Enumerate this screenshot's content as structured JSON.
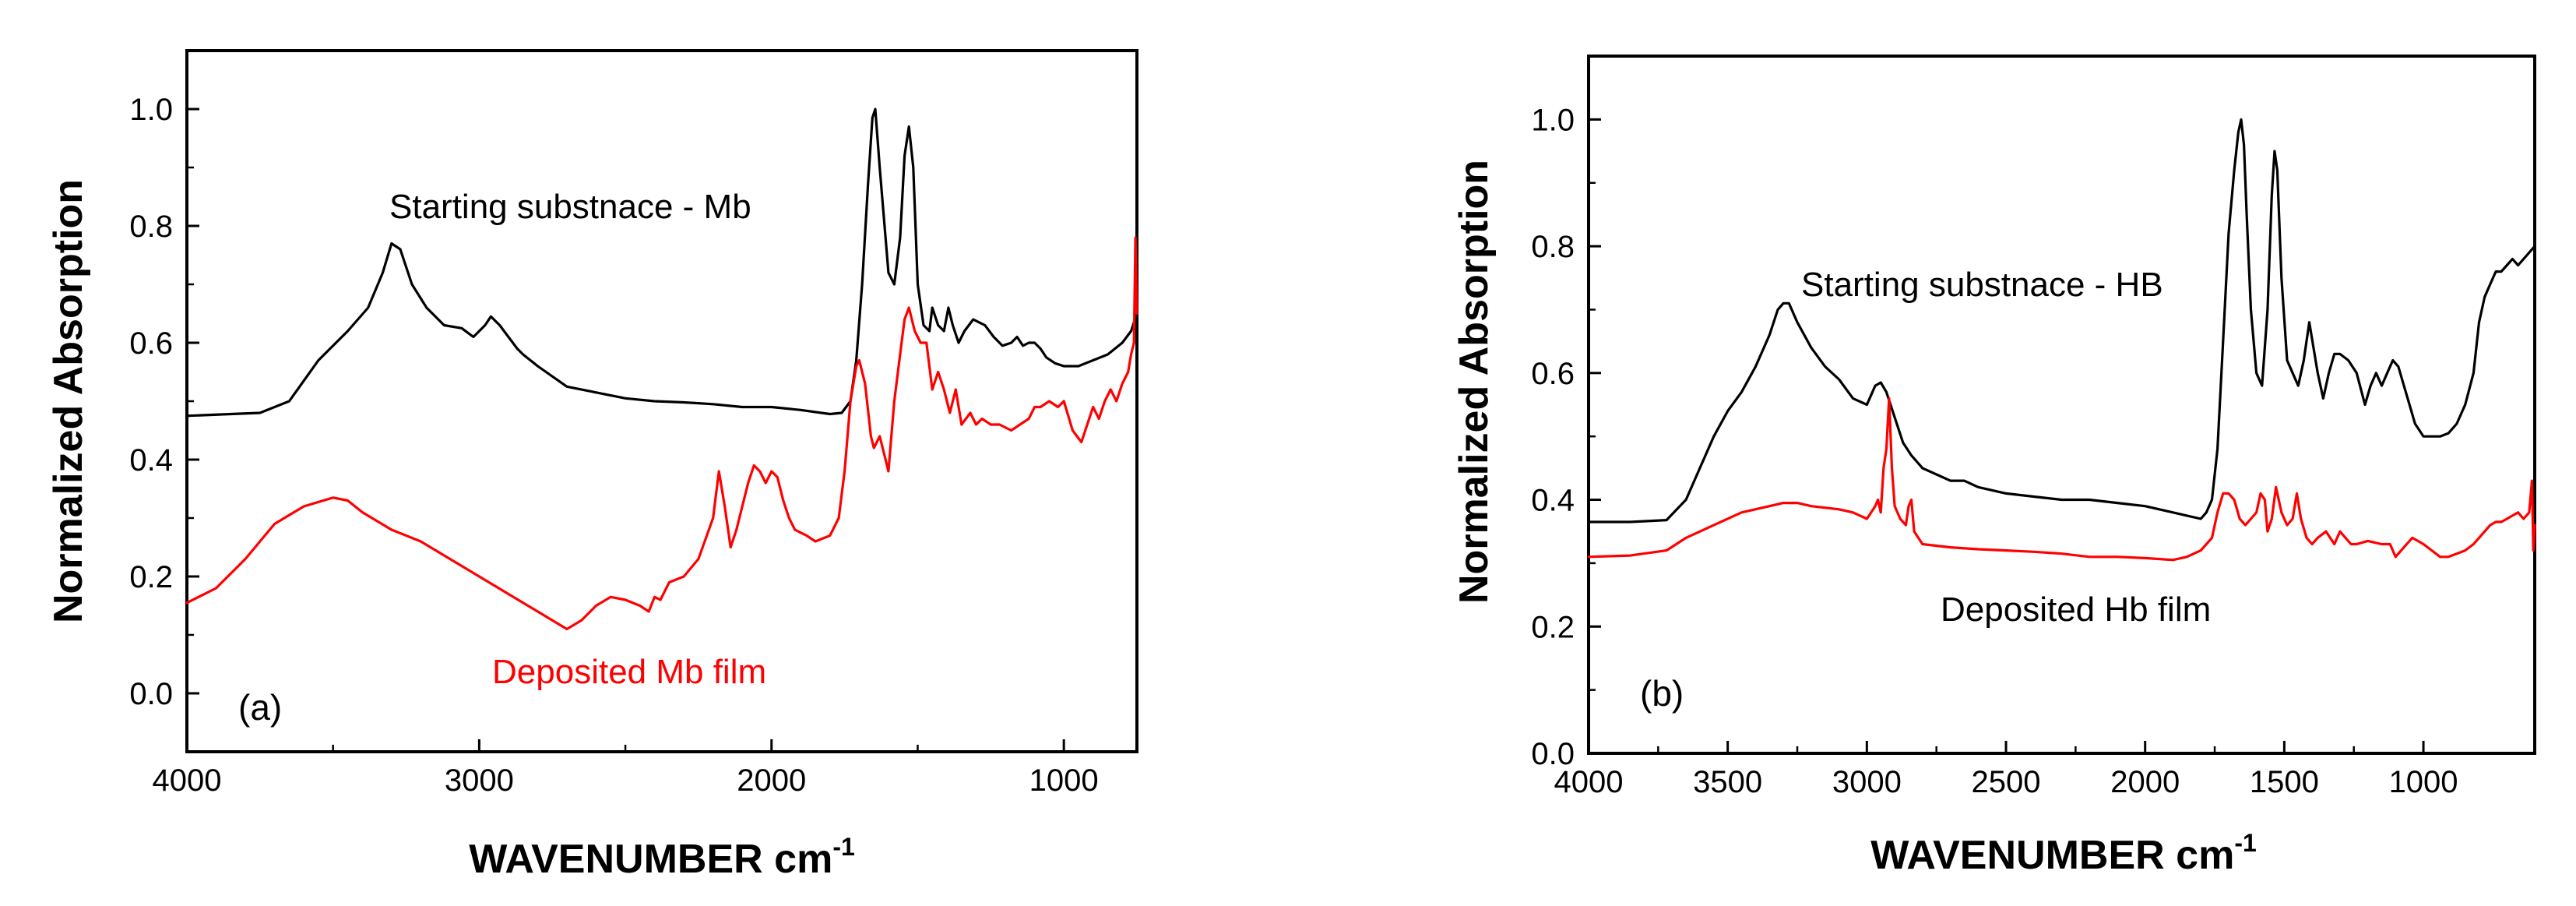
{
  "chart_data": [
    {
      "type": "line",
      "panel_label": "(a)",
      "xlabel": "WAVENUMBER   cm",
      "xlabel_sup": "-1",
      "ylabel": "Normalized Absorption",
      "xlim": [
        4000,
        750
      ],
      "ylim": [
        -0.1,
        1.1
      ],
      "xticks": [
        4000,
        3000,
        2000,
        1000
      ],
      "yticks": [
        0.0,
        0.2,
        0.4,
        0.6,
        0.8,
        1.0
      ],
      "ytick_labels": [
        "0.0",
        "0.2",
        "0.4",
        "0.6",
        "0.8",
        "1.0"
      ],
      "series": [
        {
          "name": "Starting substnace - Mb",
          "color": "#000000",
          "x": [
            4000,
            3850,
            3750,
            3650,
            3550,
            3450,
            3380,
            3330,
            3300,
            3270,
            3230,
            3180,
            3120,
            3060,
            3020,
            2980,
            2960,
            2930,
            2900,
            2870,
            2850,
            2800,
            2700,
            2600,
            2500,
            2400,
            2300,
            2200,
            2100,
            2000,
            1900,
            1800,
            1760,
            1730,
            1710,
            1690,
            1670,
            1655,
            1645,
            1630,
            1600,
            1580,
            1560,
            1545,
            1530,
            1515,
            1500,
            1480,
            1460,
            1450,
            1430,
            1410,
            1395,
            1380,
            1360,
            1340,
            1310,
            1290,
            1270,
            1240,
            1210,
            1180,
            1160,
            1140,
            1120,
            1100,
            1080,
            1060,
            1030,
            1000,
            950,
            900,
            850,
            800,
            770,
            750
          ],
          "y": [
            0.475,
            0.478,
            0.48,
            0.5,
            0.57,
            0.62,
            0.66,
            0.72,
            0.77,
            0.76,
            0.7,
            0.66,
            0.63,
            0.625,
            0.61,
            0.63,
            0.645,
            0.63,
            0.61,
            0.59,
            0.58,
            0.56,
            0.525,
            0.515,
            0.505,
            0.5,
            0.498,
            0.495,
            0.49,
            0.49,
            0.485,
            0.478,
            0.48,
            0.5,
            0.57,
            0.7,
            0.87,
            0.985,
            1.0,
            0.9,
            0.72,
            0.7,
            0.78,
            0.92,
            0.97,
            0.9,
            0.7,
            0.63,
            0.62,
            0.66,
            0.63,
            0.62,
            0.66,
            0.63,
            0.6,
            0.62,
            0.64,
            0.635,
            0.63,
            0.61,
            0.595,
            0.6,
            0.61,
            0.595,
            0.6,
            0.6,
            0.59,
            0.575,
            0.565,
            0.56,
            0.56,
            0.57,
            0.58,
            0.6,
            0.62,
            0.65
          ]
        },
        {
          "name": "Deposited Mb film",
          "color": "#ff0000",
          "x": [
            4000,
            3900,
            3800,
            3700,
            3600,
            3500,
            3450,
            3400,
            3300,
            3200,
            3100,
            3000,
            2900,
            2800,
            2750,
            2700,
            2650,
            2600,
            2550,
            2500,
            2450,
            2420,
            2400,
            2380,
            2350,
            2300,
            2250,
            2200,
            2180,
            2160,
            2140,
            2120,
            2100,
            2080,
            2060,
            2040,
            2020,
            2000,
            1980,
            1960,
            1940,
            1920,
            1900,
            1880,
            1850,
            1800,
            1770,
            1750,
            1730,
            1710,
            1700,
            1680,
            1660,
            1650,
            1630,
            1610,
            1600,
            1580,
            1560,
            1545,
            1530,
            1510,
            1490,
            1470,
            1450,
            1430,
            1410,
            1390,
            1370,
            1350,
            1320,
            1300,
            1280,
            1250,
            1220,
            1180,
            1150,
            1120,
            1100,
            1080,
            1050,
            1020,
            1000,
            970,
            940,
            920,
            900,
            880,
            860,
            840,
            820,
            800,
            780,
            770,
            760,
            755,
            750
          ],
          "y": [
            0.155,
            0.18,
            0.23,
            0.29,
            0.32,
            0.335,
            0.33,
            0.31,
            0.28,
            0.26,
            0.23,
            0.2,
            0.17,
            0.14,
            0.125,
            0.11,
            0.125,
            0.15,
            0.165,
            0.16,
            0.15,
            0.14,
            0.165,
            0.16,
            0.19,
            0.2,
            0.23,
            0.3,
            0.38,
            0.32,
            0.25,
            0.28,
            0.32,
            0.36,
            0.39,
            0.38,
            0.36,
            0.38,
            0.37,
            0.33,
            0.3,
            0.28,
            0.275,
            0.27,
            0.26,
            0.27,
            0.3,
            0.38,
            0.5,
            0.56,
            0.57,
            0.53,
            0.44,
            0.42,
            0.44,
            0.4,
            0.38,
            0.5,
            0.58,
            0.64,
            0.66,
            0.62,
            0.6,
            0.6,
            0.52,
            0.55,
            0.52,
            0.48,
            0.52,
            0.46,
            0.48,
            0.46,
            0.47,
            0.46,
            0.46,
            0.45,
            0.46,
            0.47,
            0.49,
            0.49,
            0.5,
            0.49,
            0.5,
            0.45,
            0.43,
            0.46,
            0.49,
            0.47,
            0.5,
            0.52,
            0.5,
            0.53,
            0.55,
            0.58,
            0.6,
            0.78,
            0.65
          ]
        }
      ],
      "annotations": [
        {
          "text": "Starting substnace - Mb",
          "color": "#000000"
        },
        {
          "text": "Deposited Mb film",
          "color": "#ff0000"
        }
      ]
    },
    {
      "type": "line",
      "panel_label": "(b)",
      "xlabel": "WAVENUMBER   cm",
      "xlabel_sup": "-1",
      "ylabel": "Normalized Absorption",
      "xlim": [
        4000,
        600
      ],
      "ylim": [
        0.0,
        1.1
      ],
      "xticks": [
        4000,
        3500,
        3000,
        2500,
        2000,
        1500,
        1000
      ],
      "yticks": [
        0.0,
        0.2,
        0.4,
        0.6,
        0.8,
        1.0
      ],
      "ytick_labels": [
        "0.0",
        "0.2",
        "0.4",
        "0.6",
        "0.8",
        "1.0"
      ],
      "series": [
        {
          "name": "Starting substnace - HB",
          "color": "#000000",
          "x": [
            4000,
            3850,
            3720,
            3650,
            3600,
            3550,
            3500,
            3450,
            3400,
            3350,
            3320,
            3300,
            3280,
            3250,
            3200,
            3150,
            3100,
            3050,
            3000,
            2970,
            2950,
            2930,
            2900,
            2870,
            2840,
            2800,
            2750,
            2700,
            2650,
            2600,
            2500,
            2400,
            2300,
            2200,
            2100,
            2000,
            1900,
            1850,
            1800,
            1780,
            1760,
            1740,
            1720,
            1700,
            1680,
            1665,
            1655,
            1645,
            1635,
            1620,
            1600,
            1580,
            1560,
            1545,
            1535,
            1525,
            1510,
            1490,
            1470,
            1450,
            1430,
            1410,
            1395,
            1380,
            1360,
            1340,
            1320,
            1300,
            1270,
            1240,
            1210,
            1190,
            1170,
            1150,
            1130,
            1110,
            1090,
            1070,
            1050,
            1030,
            1000,
            970,
            940,
            910,
            880,
            850,
            820,
            800,
            780,
            760,
            740,
            720,
            700,
            680,
            660,
            640,
            620,
            600
          ],
          "y": [
            0.365,
            0.365,
            0.368,
            0.4,
            0.45,
            0.5,
            0.54,
            0.57,
            0.61,
            0.66,
            0.7,
            0.71,
            0.71,
            0.68,
            0.64,
            0.61,
            0.59,
            0.56,
            0.55,
            0.58,
            0.585,
            0.57,
            0.53,
            0.49,
            0.47,
            0.45,
            0.44,
            0.43,
            0.43,
            0.42,
            0.41,
            0.405,
            0.4,
            0.4,
            0.395,
            0.39,
            0.38,
            0.375,
            0.37,
            0.38,
            0.4,
            0.48,
            0.65,
            0.82,
            0.92,
            0.98,
            1.0,
            0.96,
            0.85,
            0.7,
            0.6,
            0.58,
            0.7,
            0.88,
            0.95,
            0.92,
            0.75,
            0.62,
            0.6,
            0.58,
            0.62,
            0.68,
            0.64,
            0.6,
            0.56,
            0.6,
            0.63,
            0.63,
            0.62,
            0.6,
            0.55,
            0.58,
            0.6,
            0.58,
            0.6,
            0.62,
            0.61,
            0.58,
            0.55,
            0.52,
            0.5,
            0.5,
            0.5,
            0.505,
            0.52,
            0.55,
            0.6,
            0.68,
            0.72,
            0.74,
            0.76,
            0.76,
            0.77,
            0.78,
            0.77,
            0.78,
            0.79,
            0.8
          ]
        },
        {
          "name": "Deposited Hb film",
          "color": "#ff0000",
          "x": [
            4000,
            3850,
            3720,
            3650,
            3550,
            3450,
            3350,
            3300,
            3250,
            3200,
            3100,
            3050,
            3000,
            2970,
            2960,
            2950,
            2940,
            2930,
            2920,
            2910,
            2900,
            2880,
            2860,
            2850,
            2840,
            2830,
            2800,
            2700,
            2600,
            2500,
            2400,
            2300,
            2200,
            2100,
            2000,
            1900,
            1850,
            1800,
            1760,
            1740,
            1720,
            1700,
            1680,
            1660,
            1640,
            1620,
            1600,
            1585,
            1570,
            1560,
            1545,
            1530,
            1510,
            1490,
            1470,
            1455,
            1440,
            1420,
            1400,
            1380,
            1350,
            1320,
            1300,
            1280,
            1260,
            1240,
            1200,
            1150,
            1120,
            1100,
            1080,
            1060,
            1040,
            1020,
            1000,
            970,
            940,
            910,
            880,
            850,
            820,
            800,
            780,
            760,
            740,
            720,
            700,
            680,
            660,
            640,
            620,
            610,
            605,
            600
          ],
          "y": [
            0.31,
            0.312,
            0.32,
            0.34,
            0.36,
            0.38,
            0.39,
            0.395,
            0.395,
            0.39,
            0.385,
            0.38,
            0.37,
            0.39,
            0.4,
            0.38,
            0.45,
            0.48,
            0.56,
            0.45,
            0.39,
            0.37,
            0.36,
            0.39,
            0.4,
            0.35,
            0.33,
            0.325,
            0.322,
            0.32,
            0.318,
            0.315,
            0.31,
            0.31,
            0.308,
            0.305,
            0.31,
            0.32,
            0.34,
            0.38,
            0.41,
            0.41,
            0.4,
            0.37,
            0.36,
            0.37,
            0.38,
            0.41,
            0.4,
            0.35,
            0.37,
            0.42,
            0.38,
            0.36,
            0.37,
            0.41,
            0.37,
            0.34,
            0.33,
            0.34,
            0.35,
            0.33,
            0.35,
            0.34,
            0.33,
            0.33,
            0.335,
            0.33,
            0.33,
            0.31,
            0.32,
            0.33,
            0.34,
            0.335,
            0.33,
            0.32,
            0.31,
            0.31,
            0.315,
            0.32,
            0.33,
            0.34,
            0.35,
            0.36,
            0.365,
            0.365,
            0.37,
            0.375,
            0.38,
            0.37,
            0.38,
            0.43,
            0.32,
            0.36
          ]
        }
      ],
      "annotations": [
        {
          "text": "Starting substnace - HB",
          "color": "#000000"
        },
        {
          "text": "Deposited Hb film",
          "color": "#000000"
        }
      ]
    }
  ]
}
